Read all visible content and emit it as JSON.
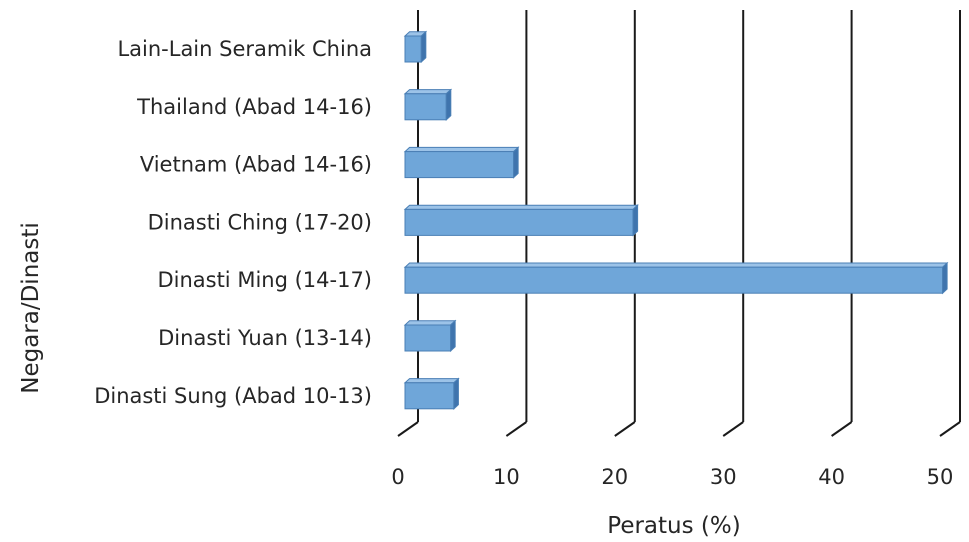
{
  "chart_data": {
    "type": "bar",
    "orientation": "horizontal",
    "style": "3d",
    "categories": [
      "Dinasti Sung (Abad 10-13)",
      "Dinasti Yuan (13-14)",
      "Dinasti Ming (14-17)",
      "Dinasti Ching (17-20)",
      "Vietnam (Abad 14-16)",
      "Thailand (Abad 14-16)",
      "Lain-Lain Seramik China"
    ],
    "values": [
      4.5,
      4.2,
      49.5,
      21,
      10,
      3.8,
      1.5
    ],
    "xlabel": "Peratus (%)",
    "ylabel": "Negara/Dinasti",
    "xlim": [
      0,
      50
    ],
    "xticks": [
      "0",
      "10",
      "20",
      "30",
      "40",
      "50"
    ],
    "grid": true,
    "legend": "none",
    "colors": {
      "bar_face": "#6fa6d9",
      "bar_side": "#3f74ad",
      "bar_top": "#9cc3e8",
      "bar_stroke": "#4a7fb5"
    }
  }
}
